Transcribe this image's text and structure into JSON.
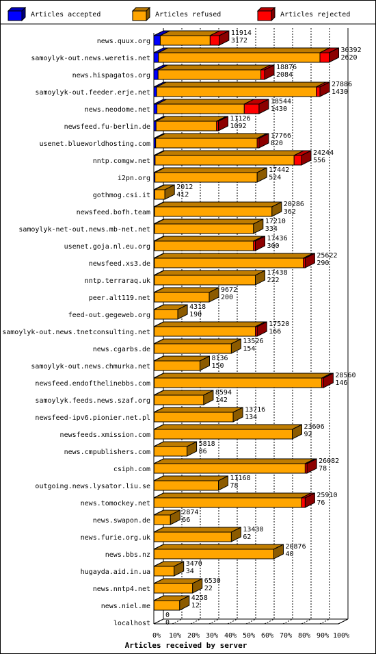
{
  "chart_data": {
    "type": "bar",
    "stacked": true,
    "orientation": "horizontal",
    "xlabel": "Articles received by server",
    "xtick_labels": [
      "0%",
      "10%",
      "20%",
      "30%",
      "40%",
      "50%",
      "60%",
      "70%",
      "80%",
      "90%",
      "100%"
    ],
    "xlim": [
      0,
      100
    ],
    "legend_position": "top",
    "colors": {
      "accepted": "#0000ff",
      "refused": "#ffa500",
      "rejected": "#ff0000"
    },
    "series": [
      {
        "key": "accepted",
        "name": "Articles accepted"
      },
      {
        "key": "refused",
        "name": "Articles refused"
      },
      {
        "key": "rejected",
        "name": "Articles rejected"
      }
    ],
    "rows": [
      {
        "server": "news.quux.org",
        "accepted": 3.5,
        "refused": 27,
        "rejected": 5,
        "label_top": "11914",
        "label_bottom": "3172"
      },
      {
        "server": "samoylyk-out.news.weretis.net",
        "accepted": 2.5,
        "refused": 87.5,
        "rejected": 5,
        "label_top": "30392",
        "label_bottom": "2620"
      },
      {
        "server": "news.hispagatos.org",
        "accepted": 2.3,
        "refused": 55.7,
        "rejected": 2,
        "label_top": "18876",
        "label_bottom": "2084"
      },
      {
        "server": "samoylyk-out.feeder.erje.net",
        "accepted": 1.5,
        "refused": 86.5,
        "rejected": 2,
        "label_top": "27886",
        "label_bottom": "1430"
      },
      {
        "server": "news.neodome.net",
        "accepted": 1.7,
        "refused": 47.3,
        "rejected": 8,
        "label_top": "18544",
        "label_bottom": "1430"
      },
      {
        "server": "newsfeed.fu-berlin.de",
        "accepted": 1.2,
        "refused": 32.8,
        "rejected": 1,
        "label_top": "11126",
        "label_bottom": "1092"
      },
      {
        "server": "usenet.blueworldhosting.com",
        "accepted": 1,
        "refused": 55,
        "rejected": 1,
        "label_top": "17766",
        "label_bottom": "820"
      },
      {
        "server": "nntp.comgw.net",
        "accepted": 0.7,
        "refused": 75.3,
        "rejected": 4,
        "label_top": "24244",
        "label_bottom": "556"
      },
      {
        "server": "i2pn.org",
        "accepted": 0.6,
        "refused": 55.4,
        "rejected": 0,
        "label_top": "17442",
        "label_bottom": "524"
      },
      {
        "server": "gothmog.csi.it",
        "accepted": 0.5,
        "refused": 5.5,
        "rejected": 0,
        "label_top": "2012",
        "label_bottom": "412"
      },
      {
        "server": "newsfeed.bofh.team",
        "accepted": 0.4,
        "refused": 63.6,
        "rejected": 0,
        "label_top": "20286",
        "label_bottom": "362"
      },
      {
        "server": "samoylyk-net-out.news.mb-net.net",
        "accepted": 0.4,
        "refused": 53.6,
        "rejected": 0,
        "label_top": "17210",
        "label_bottom": "334"
      },
      {
        "server": "usenet.goja.nl.eu.org",
        "accepted": 0.4,
        "refused": 53.6,
        "rejected": 1,
        "label_top": "17436",
        "label_bottom": "300"
      },
      {
        "server": "newsfeed.xs3.de",
        "accepted": 0.3,
        "refused": 80.7,
        "rejected": 1,
        "label_top": "25622",
        "label_bottom": "290"
      },
      {
        "server": "nntp.terraraq.uk",
        "accepted": 0.3,
        "refused": 54.7,
        "rejected": 0,
        "label_top": "17438",
        "label_bottom": "222"
      },
      {
        "server": "peer.alt119.net",
        "accepted": 0.3,
        "refused": 29.7,
        "rejected": 0,
        "label_top": "9672",
        "label_bottom": "200"
      },
      {
        "server": "feed-out.gegeweb.org",
        "accepted": 0.2,
        "refused": 12.8,
        "rejected": 0,
        "label_top": "4318",
        "label_bottom": "190"
      },
      {
        "server": "samoylyk-out.news.tnetconsulting.net",
        "accepted": 0.2,
        "refused": 54.8,
        "rejected": 1,
        "label_top": "17520",
        "label_bottom": "166"
      },
      {
        "server": "news.cgarbs.de",
        "accepted": 0.2,
        "refused": 41.8,
        "rejected": 0,
        "label_top": "13526",
        "label_bottom": "154"
      },
      {
        "server": "samoylyk-out.news.chmurka.net",
        "accepted": 0.2,
        "refused": 24.8,
        "rejected": 0,
        "label_top": "8136",
        "label_bottom": "150"
      },
      {
        "server": "newsfeed.endofthelinebbs.com",
        "accepted": 0.2,
        "refused": 90.8,
        "rejected": 1,
        "label_top": "28560",
        "label_bottom": "146"
      },
      {
        "server": "samoylyk.feeds.news.szaf.org",
        "accepted": 0.2,
        "refused": 26.8,
        "rejected": 0,
        "label_top": "8594",
        "label_bottom": "142"
      },
      {
        "server": "newsfeed-ipv6.pionier.net.pl",
        "accepted": 0.2,
        "refused": 42.8,
        "rejected": 0,
        "label_top": "13716",
        "label_bottom": "134"
      },
      {
        "server": "newsfeeds.xmission.com",
        "accepted": 0.1,
        "refused": 74.9,
        "rejected": 0,
        "label_top": "23606",
        "label_bottom": "92"
      },
      {
        "server": "news.cmpublishers.com",
        "accepted": 0.1,
        "refused": 17.9,
        "rejected": 0,
        "label_top": "5818",
        "label_bottom": "86"
      },
      {
        "server": "csiph.com",
        "accepted": 0.1,
        "refused": 81.9,
        "rejected": 1,
        "label_top": "26082",
        "label_bottom": "78"
      },
      {
        "server": "outgoing.news.lysator.liu.se",
        "accepted": 0.1,
        "refused": 34.9,
        "rejected": 0,
        "label_top": "11168",
        "label_bottom": "78"
      },
      {
        "server": "news.tomockey.net",
        "accepted": 0.1,
        "refused": 79.9,
        "rejected": 2,
        "label_top": "25910",
        "label_bottom": "76"
      },
      {
        "server": "news.swapon.de",
        "accepted": 0.1,
        "refused": 8.9,
        "rejected": 0,
        "label_top": "2874",
        "label_bottom": "66"
      },
      {
        "server": "news.furie.org.uk",
        "accepted": 0.1,
        "refused": 41.9,
        "rejected": 0,
        "label_top": "13430",
        "label_bottom": "62"
      },
      {
        "server": "news.bbs.nz",
        "accepted": 0.1,
        "refused": 64.9,
        "rejected": 0,
        "label_top": "20876",
        "label_bottom": "40"
      },
      {
        "server": "hugayda.aid.in.ua",
        "accepted": 0.1,
        "refused": 10.9,
        "rejected": 0,
        "label_top": "3470",
        "label_bottom": "34"
      },
      {
        "server": "news.nntp4.net",
        "accepted": 0.1,
        "refused": 20.9,
        "rejected": 0,
        "label_top": "6530",
        "label_bottom": "22"
      },
      {
        "server": "news.niel.me",
        "accepted": 0.1,
        "refused": 13.9,
        "rejected": 0,
        "label_top": "4258",
        "label_bottom": "12"
      },
      {
        "server": "localhost",
        "accepted": 0,
        "refused": 0,
        "rejected": 0,
        "label_top": "0",
        "label_bottom": "0"
      }
    ]
  }
}
